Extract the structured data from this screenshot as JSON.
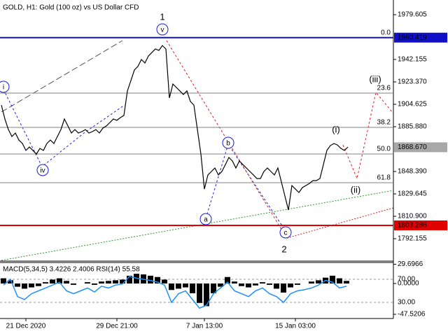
{
  "chart_data": [
    {
      "type": "line",
      "title": "GOLD, H1:  Gold (100 oz) vs US Dollar CFD",
      "categories": [
        null,
        null,
        null,
        null,
        null,
        null,
        null,
        "21 Dec 2020",
        null,
        null,
        null,
        null,
        null,
        null,
        null,
        null,
        null,
        null,
        null,
        null,
        null,
        null,
        null,
        null,
        null,
        null,
        null,
        null,
        null,
        null,
        null,
        null,
        null,
        "29 Dec 21:00",
        null,
        null,
        null,
        null,
        null,
        null,
        null,
        null,
        null,
        null,
        null,
        null,
        null,
        null,
        null,
        null,
        null,
        null,
        null,
        null,
        null,
        null,
        null,
        null,
        "7 Jan 13:00",
        null,
        null,
        null,
        null,
        null,
        null,
        null,
        null,
        null,
        null,
        null,
        null,
        null,
        null,
        null,
        null,
        null,
        null,
        null,
        null,
        null,
        null,
        null,
        null,
        null,
        "15 Jan 03:00",
        null,
        null,
        null,
        null,
        null,
        null,
        null,
        null,
        null,
        null,
        null,
        null,
        null,
        null,
        null
      ],
      "series": [
        {
          "color": "#000000",
          "values": [
            1904.0,
            1892.3,
            1883.5,
            1877.7,
            1880.6,
            1874.7,
            1871.8,
            1866.0,
            1868.9,
            1866.0,
            1863.0,
            1867.7,
            1866.0,
            1871.8,
            1874.7,
            1871.8,
            1877.7,
            1883.5,
            1892.3,
            1886.5,
            1880.6,
            1883.5,
            1880.6,
            1881.8,
            1883.5,
            1880.6,
            1881.8,
            1883.5,
            1880.6,
            1884.7,
            1886.5,
            1889.4,
            1892.3,
            1891.2,
            1893.5,
            1895.3,
            1915.8,
            1924.5,
            1933.3,
            1936.3,
            1942.1,
            1939.2,
            1945.0,
            1948.0,
            1950.9,
            1949.7,
            1953.8,
            1950.9,
            1909.9,
            1921.6,
            1918.7,
            1915.8,
            1912.8,
            1915.8,
            1907.0,
            1904.0,
            1883.5,
            1863.0,
            1833.7,
            1845.5,
            1848.4,
            1851.3,
            1845.5,
            1848.4,
            1854.2,
            1860.1,
            1857.2,
            1851.3,
            1857.2,
            1854.2,
            1851.3,
            1848.4,
            1845.5,
            1842.5,
            1842.5,
            1848.4,
            1851.3,
            1848.4,
            1845.5,
            1851.3,
            1839.6,
            1827.9,
            1816.2,
            1836.7,
            1833.7,
            1830.8,
            1834.9,
            1836.7,
            1838.4,
            1840.8,
            1840.8,
            1842.5,
            1854.2,
            1866.0,
            1870.1,
            1871.8,
            1870.6,
            1867.7,
            1866.0,
            1868.9
          ]
        }
      ],
      "ylim": [
        1774.0,
        1991.9
      ],
      "yticks": [
        1979.605,
        1942.155,
        {
          "value": 1923.37,
          "label": "1923.370"
        },
        1904.625,
        {
          "value": 1885.88,
          "label": "1885.880"
        },
        {
          "value": 1848.39,
          "label": "1848.390"
        },
        1829.645,
        {
          "value": 1810.9,
          "label": "1810.900"
        },
        1792.155
      ],
      "levels": [
        {
          "value": 1960.419,
          "color": "#1010c8",
          "line": true
        },
        {
          "value": 1868.67,
          "label": "1868.670",
          "color": "#a8a8a8",
          "line": false
        },
        {
          "value": 1803.286,
          "color": "#e00000",
          "line": true
        }
      ],
      "fibonacci": {
        "levels": [
          "0.0",
          "23.6",
          "38.2",
          "50.0",
          "61.8"
        ],
        "prices": [
          1960.419,
          1914.0,
          1885.3,
          1863.0,
          1839.0
        ],
        "color": "#808080"
      },
      "annotations": [
        {
          "text": "1",
          "color": "#c00000",
          "circled": false
        },
        {
          "text": "v",
          "color": "#1a1ae0",
          "circled": true
        },
        {
          "text": "i",
          "color": "#1a1ae0",
          "circled": true
        },
        {
          "text": "iv",
          "color": "#1a1ae0",
          "circled": true
        },
        {
          "text": "b",
          "color": "#1a1ae0",
          "circled": true
        },
        {
          "text": "a",
          "color": "#1a1ae0",
          "circled": true
        },
        {
          "text": "c",
          "color": "#1a1ae0",
          "circled": true
        },
        {
          "text": "2",
          "color": "#c00000",
          "circled": false
        },
        {
          "text": "(i)",
          "color": "#e01010",
          "circled": false
        },
        {
          "text": "(ii)",
          "color": "#e01010",
          "circled": false
        },
        {
          "text": "(iii)",
          "color": "#e01010",
          "circled": false
        }
      ]
    },
    {
      "type": "bar",
      "title": "MACD(5,34,5) 3.4226 2.4006 RSI(14) 55.58",
      "series": [
        {
          "color": "#000000",
          "values": [
            8,
            5,
            -5,
            -8,
            -6,
            -4,
            2,
            6,
            8,
            4,
            -2,
            0,
            2,
            -2,
            3,
            4,
            5,
            6,
            12,
            15,
            14,
            12,
            10,
            6,
            -10,
            -8,
            -6,
            -15,
            -30,
            -35,
            -15,
            -5,
            10,
            3,
            -4,
            -6,
            -3,
            2,
            -2,
            -8,
            -14,
            -6,
            -2,
            0,
            3,
            5,
            9,
            12,
            8,
            4
          ]
        },
        {
          "color": "#1e90ff",
          "axis": "y2",
          "values": [
            60,
            70,
            40,
            35,
            45,
            50,
            55,
            60,
            65,
            50,
            45,
            50,
            55,
            48,
            58,
            55,
            60,
            62,
            75,
            72,
            70,
            68,
            65,
            60,
            30,
            45,
            50,
            35,
            20,
            25,
            45,
            55,
            65,
            50,
            45,
            40,
            50,
            55,
            45,
            40,
            30,
            45,
            50,
            52,
            55,
            60,
            68,
            65,
            55,
            58
          ]
        }
      ],
      "ylim": [
        -54.0,
        32.4
      ],
      "yticks": [
        29.6966,
        {
          "value": 0,
          "label": "0.0000"
        },
        -47.5206
      ],
      "y2lim": [
        2.1,
        99.1
      ],
      "y2ticks": [
        {
          "value": 70,
          "label": "70.00"
        },
        {
          "value": 30,
          "label": "30.00"
        }
      ],
      "y2grid": true
    }
  ]
}
